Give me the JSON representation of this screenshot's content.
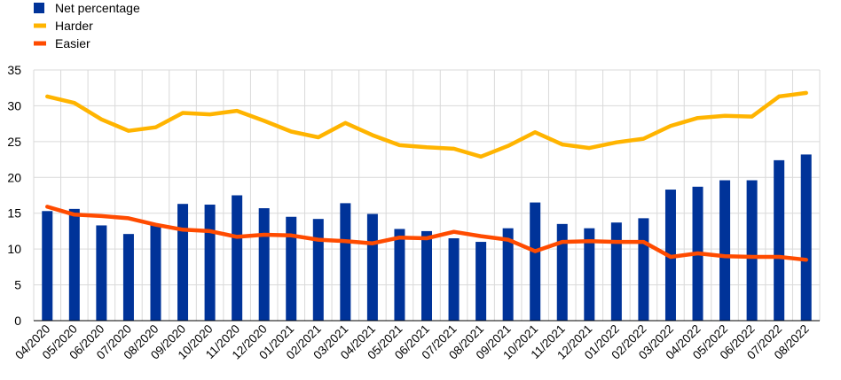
{
  "chart_data": {
    "type": "bar",
    "categories": [
      "04/2020",
      "05/2020",
      "06/2020",
      "07/2020",
      "08/2020",
      "09/2020",
      "10/2020",
      "11/2020",
      "12/2020",
      "01/2021",
      "02/2021",
      "03/2021",
      "04/2021",
      "05/2021",
      "06/2021",
      "07/2021",
      "08/2021",
      "09/2021",
      "10/2021",
      "11/2021",
      "12/2021",
      "01/2022",
      "02/2022",
      "03/2022",
      "04/2022",
      "05/2022",
      "06/2022",
      "07/2022",
      "08/2022"
    ],
    "series": [
      {
        "name": "Net percentage",
        "kind": "bar",
        "color": "#003399",
        "values": [
          15.3,
          15.6,
          13.3,
          12.1,
          13.4,
          16.3,
          16.2,
          17.5,
          15.7,
          14.5,
          14.2,
          16.4,
          14.9,
          12.8,
          12.5,
          11.5,
          11.0,
          12.9,
          16.5,
          13.5,
          12.9,
          13.7,
          14.3,
          18.3,
          18.7,
          19.6,
          19.6,
          22.4,
          23.2
        ]
      },
      {
        "name": "Harder",
        "kind": "line",
        "color": "#FFB400",
        "values": [
          31.3,
          30.4,
          28.1,
          26.5,
          27.0,
          29.0,
          28.8,
          29.3,
          27.9,
          26.4,
          25.6,
          27.6,
          25.9,
          24.5,
          24.2,
          24.0,
          22.9,
          24.4,
          26.3,
          24.6,
          24.1,
          24.9,
          25.4,
          27.2,
          28.3,
          28.6,
          28.5,
          31.3,
          31.8
        ]
      },
      {
        "name": "Easier",
        "kind": "line",
        "color": "#FF4B00",
        "values": [
          15.9,
          14.8,
          14.6,
          14.3,
          13.4,
          12.7,
          12.5,
          11.7,
          12.0,
          11.9,
          11.3,
          11.1,
          10.8,
          11.6,
          11.5,
          12.4,
          11.8,
          11.3,
          9.7,
          11.0,
          11.1,
          11.0,
          11.0,
          8.9,
          9.4,
          9.0,
          8.9,
          8.9,
          8.5
        ]
      }
    ],
    "ylim": [
      0,
      35
    ],
    "yticks": [
      0,
      5,
      10,
      15,
      20,
      25,
      30,
      35
    ],
    "grid": true,
    "legend_position": "top-left"
  }
}
